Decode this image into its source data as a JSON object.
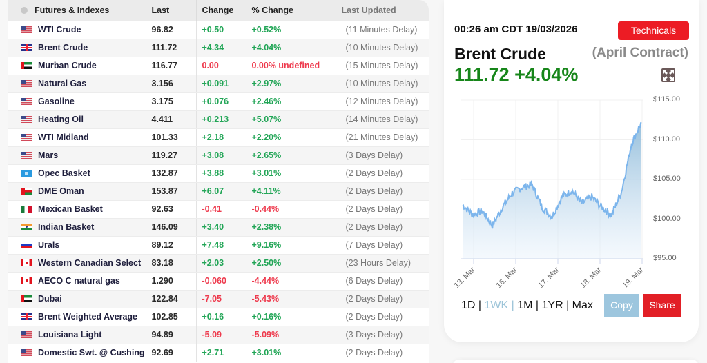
{
  "table": {
    "headers": [
      "Futures & Indexes",
      "Last",
      "Change",
      "% Change",
      "Last Updated"
    ],
    "header_icon": "globe-icon",
    "rows": [
      {
        "flag": "us",
        "name": "WTI Crude",
        "last": "96.82",
        "change": "+0.50",
        "pct": "+0.52%",
        "updated": "(11 Minutes Delay)",
        "dir": "pos"
      },
      {
        "flag": "gb",
        "name": "Brent Crude",
        "last": "111.72",
        "change": "+4.34",
        "pct": "+4.04%",
        "updated": "(10 Minutes Delay)",
        "dir": "pos"
      },
      {
        "flag": "ae",
        "name": "Murban Crude",
        "last": "116.77",
        "change": "0.00",
        "pct": "0.00% undefined",
        "updated": "(15 Minutes Delay)",
        "dir": "neg"
      },
      {
        "flag": "us",
        "name": "Natural Gas",
        "last": "3.156",
        "change": "+0.091",
        "pct": "+2.97%",
        "updated": "(10 Minutes Delay)",
        "dir": "pos"
      },
      {
        "flag": "us",
        "name": "Gasoline",
        "last": "3.175",
        "change": "+0.076",
        "pct": "+2.46%",
        "updated": "(12 Minutes Delay)",
        "dir": "pos"
      },
      {
        "flag": "us",
        "name": "Heating Oil",
        "last": "4.411",
        "change": "+0.213",
        "pct": "+5.07%",
        "updated": "(14 Minutes Delay)",
        "dir": "pos"
      },
      {
        "flag": "us",
        "name": "WTI Midland",
        "last": "101.33",
        "change": "+2.18",
        "pct": "+2.20%",
        "updated": "(21 Minutes Delay)",
        "dir": "pos"
      },
      {
        "flag": "us",
        "name": "Mars",
        "last": "119.27",
        "change": "+3.08",
        "pct": "+2.65%",
        "updated": "(3 Days Delay)",
        "dir": "pos"
      },
      {
        "flag": "un",
        "name": "Opec Basket",
        "last": "132.87",
        "change": "+3.88",
        "pct": "+3.01%",
        "updated": "(2 Days Delay)",
        "dir": "pos"
      },
      {
        "flag": "om",
        "name": "DME Oman",
        "last": "153.87",
        "change": "+6.07",
        "pct": "+4.11%",
        "updated": "(2 Days Delay)",
        "dir": "pos"
      },
      {
        "flag": "mx",
        "name": "Mexican Basket",
        "last": "92.63",
        "change": "-0.41",
        "pct": "-0.44%",
        "updated": "(2 Days Delay)",
        "dir": "neg"
      },
      {
        "flag": "in",
        "name": "Indian Basket",
        "last": "146.09",
        "change": "+3.40",
        "pct": "+2.38%",
        "updated": "(2 Days Delay)",
        "dir": "pos"
      },
      {
        "flag": "ru",
        "name": "Urals",
        "last": "89.12",
        "change": "+7.48",
        "pct": "+9.16%",
        "updated": "(7 Days Delay)",
        "dir": "pos"
      },
      {
        "flag": "ca",
        "name": "Western Canadian Select",
        "last": "83.18",
        "change": "+2.03",
        "pct": "+2.50%",
        "updated": "(23 Hours Delay)",
        "dir": "pos"
      },
      {
        "flag": "ca",
        "name": "AECO C natural gas",
        "last": "1.290",
        "change": "-0.060",
        "pct": "-4.44%",
        "updated": "(6 Days Delay)",
        "dir": "neg"
      },
      {
        "flag": "ae",
        "name": "Dubai",
        "last": "122.84",
        "change": "-7.05",
        "pct": "-5.43%",
        "updated": "(2 Days Delay)",
        "dir": "neg"
      },
      {
        "flag": "gb",
        "name": "Brent Weighted Average",
        "last": "102.85",
        "change": "+0.16",
        "pct": "+0.16%",
        "updated": "(2 Days Delay)",
        "dir": "pos"
      },
      {
        "flag": "us",
        "name": "Louisiana Light",
        "last": "94.89",
        "change": "-5.09",
        "pct": "-5.09%",
        "updated": "(3 Days Delay)",
        "dir": "neg"
      },
      {
        "flag": "us",
        "name": "Domestic Swt. @ Cushing",
        "last": "92.69",
        "change": "+2.71",
        "pct": "+3.01%",
        "updated": "(2 Days Delay)",
        "dir": "pos"
      }
    ]
  },
  "card": {
    "timestamp": "00:26 am CDT 19/03/2026",
    "technicals_label": "Technicals",
    "instrument": "Brent Crude",
    "contract": "(April Contract)",
    "price_line": "111.72 +4.04%",
    "expand_icon": "expand-arrows-icon",
    "ranges": [
      "1D",
      "1WK",
      "1M",
      "1YR",
      "Max"
    ],
    "active_range": "1WK",
    "copy_label": "Copy",
    "share_label": "Share"
  },
  "colors": {
    "positive": "#21a556",
    "negative": "#ee3a4d",
    "price_green": "#17861a",
    "technicals_red": "#ec1c24",
    "share_red": "#e21f26",
    "copy_blue": "#9dc6de",
    "line_blue": "#7cb5ec"
  },
  "chart_data": {
    "type": "area",
    "title": "Brent Crude (April Contract)",
    "xlabel": "",
    "ylabel": "",
    "x_ticks": [
      "13. Mar",
      "16. Mar",
      "17. Mar",
      "18. Mar",
      "19. Mar"
    ],
    "y_ticks": [
      "$95.00",
      "$100.00",
      "$105.00",
      "$110.00",
      "$115.00"
    ],
    "ylim": [
      95,
      115
    ],
    "grid": true,
    "y_axis_position": "right",
    "series": [
      {
        "name": "Brent Crude",
        "x": [
          "13. Mar start",
          "13. Mar",
          "13. Mar mid",
          "13. Mar late",
          "16. Mar early",
          "16. Mar",
          "16. Mar mid",
          "16. Mar peak",
          "16. Mar late",
          "17. Mar early",
          "17. Mar",
          "17. Mar mid",
          "17. Mar late",
          "18. Mar early",
          "18. Mar",
          "18. Mar mid",
          "18. Mar late",
          "19. Mar early",
          "19. Mar"
        ],
        "values": [
          101.8,
          100.6,
          101.0,
          99.2,
          101.5,
          103.3,
          104.0,
          104.3,
          101.5,
          100.3,
          102.8,
          103.6,
          102.0,
          102.8,
          101.5,
          100.5,
          103.5,
          109.5,
          112.2
        ]
      }
    ]
  }
}
